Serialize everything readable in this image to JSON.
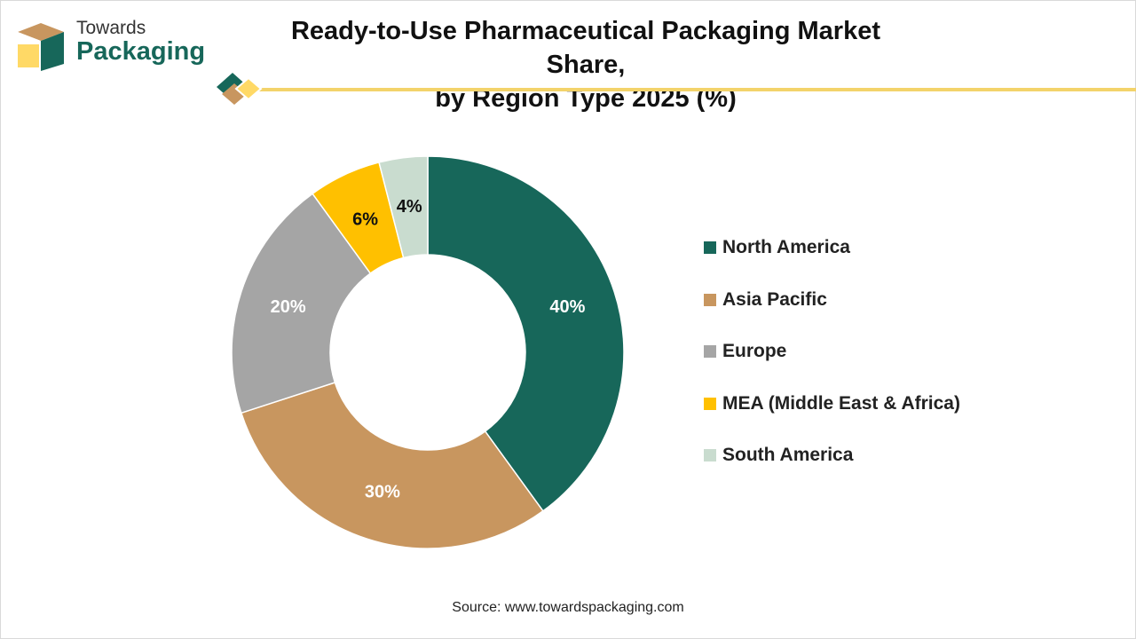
{
  "header": {
    "logo_line1": "Towards",
    "logo_line2": "Packaging",
    "title_line1": "Ready-to-Use Pharmaceutical Packaging Market Share,",
    "title_line2": "by Region Type 2025 (%)"
  },
  "colors": {
    "brand_green": "#17675a",
    "brand_tan": "#c8965f",
    "brand_yellow": "#f5c518",
    "rule_yellow": "#f3d36b"
  },
  "chart_data": {
    "type": "pie",
    "variant": "donut",
    "categories": [
      "North America",
      "Asia Pacific",
      "Europe",
      "MEA (Middle East & Africa)",
      "South America"
    ],
    "values": [
      40,
      30,
      20,
      6,
      4
    ],
    "labels": [
      "40%",
      "30%",
      "20%",
      "6%",
      "4%"
    ],
    "colors": [
      "#17675a",
      "#c8965f",
      "#a5a5a5",
      "#ffc000",
      "#c9dccf"
    ],
    "label_colors": [
      "#ffffff",
      "#ffffff",
      "#ffffff",
      "#111111",
      "#111111"
    ],
    "legend_position": "right",
    "unit": "%"
  },
  "footer": {
    "source": "Source: www.towardspackaging.com"
  }
}
